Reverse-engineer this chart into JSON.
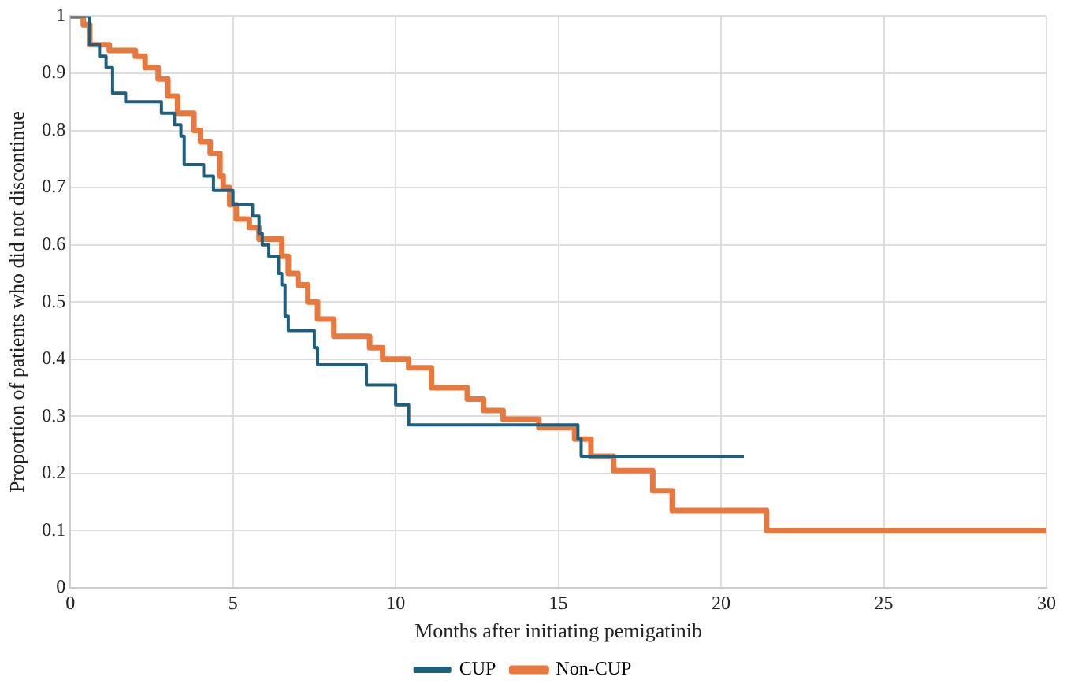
{
  "chart_data": {
    "type": "step",
    "xlabel": "Months after initiating pemigatinib",
    "ylabel": "Proportion of patients who did not discontinue",
    "xlim": [
      0,
      30
    ],
    "xticks": [
      0,
      5,
      10,
      15,
      20,
      25,
      30
    ],
    "ylim": [
      0,
      1
    ],
    "yticks": [
      0,
      0.1,
      0.2,
      0.3,
      0.4,
      0.5,
      0.6,
      0.7,
      0.8,
      0.9,
      1
    ],
    "grid": true,
    "legend": "bottom",
    "marker": "none",
    "series": [
      {
        "name": "CUP",
        "color": "#1d5f7e",
        "x": [
          0,
          0.6,
          0.9,
          1.1,
          1.3,
          1.7,
          2.8,
          3.2,
          3.4,
          3.5,
          4.1,
          4.4,
          5.0,
          5.6,
          5.8,
          5.9,
          6.1,
          6.4,
          6.5,
          6.6,
          6.7,
          7.5,
          7.6,
          9.1,
          10.0,
          10.4,
          15.6,
          15.7,
          20.7
        ],
        "values": [
          1,
          0.95,
          0.93,
          0.91,
          0.865,
          0.85,
          0.83,
          0.81,
          0.79,
          0.74,
          0.72,
          0.695,
          0.67,
          0.65,
          0.62,
          0.6,
          0.58,
          0.55,
          0.53,
          0.475,
          0.45,
          0.42,
          0.39,
          0.355,
          0.32,
          0.285,
          0.26,
          0.23,
          0.23
        ]
      },
      {
        "name": "Non-CUP",
        "color": "#e8793e",
        "x": [
          0,
          0.4,
          0.6,
          1.2,
          2.0,
          2.3,
          2.7,
          3.0,
          3.3,
          3.8,
          4.0,
          4.3,
          4.6,
          4.7,
          4.9,
          5.1,
          5.5,
          5.8,
          6.5,
          6.7,
          7.0,
          7.3,
          7.6,
          8.1,
          9.2,
          9.6,
          10.4,
          11.1,
          12.2,
          12.7,
          13.3,
          14.4,
          15.5,
          16.0,
          16.7,
          17.9,
          18.5,
          21.4,
          30
        ],
        "values": [
          1,
          0.985,
          0.95,
          0.94,
          0.93,
          0.91,
          0.89,
          0.86,
          0.83,
          0.8,
          0.78,
          0.76,
          0.72,
          0.7,
          0.67,
          0.645,
          0.63,
          0.61,
          0.58,
          0.55,
          0.53,
          0.5,
          0.47,
          0.44,
          0.42,
          0.4,
          0.385,
          0.35,
          0.33,
          0.31,
          0.295,
          0.28,
          0.26,
          0.23,
          0.205,
          0.17,
          0.135,
          0.1,
          0.1
        ]
      }
    ]
  }
}
